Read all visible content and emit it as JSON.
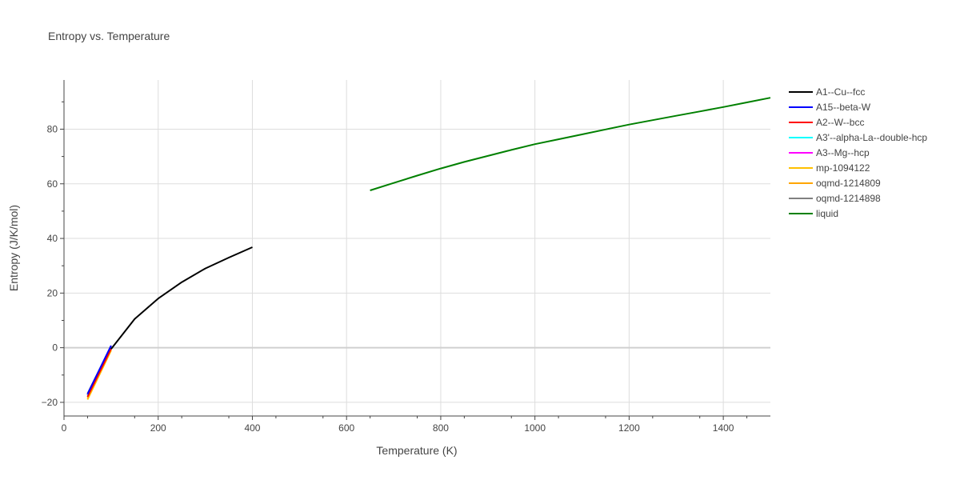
{
  "chart_data": {
    "type": "line",
    "title": "Entropy vs. Temperature",
    "xlabel": "Temperature (K)",
    "ylabel": "Entropy (J/K/mol)",
    "xlim": [
      0,
      1500
    ],
    "ylim": [
      -25,
      98
    ],
    "x_ticks": [
      0,
      200,
      400,
      600,
      800,
      1000,
      1200,
      1400
    ],
    "y_ticks": [
      -20,
      0,
      20,
      40,
      60,
      80
    ],
    "grid": true,
    "legend_position": "right",
    "series": [
      {
        "name": "A1--Cu--fcc",
        "color": "#000000",
        "x": [
          100,
          150,
          200,
          250,
          300,
          350,
          400
        ],
        "y": [
          -0.5,
          10.5,
          18,
          24,
          29,
          33,
          36.8
        ]
      },
      {
        "name": "A15--beta-W",
        "color": "#0000ff",
        "x": [
          50,
          100
        ],
        "y": [
          -17,
          0.8
        ]
      },
      {
        "name": "A2--W--bcc",
        "color": "#ff0000",
        "x": [
          50,
          100
        ],
        "y": [
          -18,
          -0.3
        ]
      },
      {
        "name": "A3'--alpha-La--double-hcp",
        "color": "#00ffff",
        "x": [
          50,
          100
        ],
        "y": [
          -17.5,
          0.3
        ]
      },
      {
        "name": "A3--Mg--hcp",
        "color": "#ff00ff",
        "x": [
          50,
          100
        ],
        "y": [
          -17.3,
          0.5
        ]
      },
      {
        "name": "mp-1094122",
        "color": "#ffc000",
        "x": [
          50,
          100
        ],
        "y": [
          -19,
          -1
        ]
      },
      {
        "name": "oqmd-1214809",
        "color": "#ffa500",
        "x": [
          50,
          100
        ],
        "y": [
          -18.5,
          -0.8
        ]
      },
      {
        "name": "oqmd-1214898",
        "color": "#808080",
        "x": [
          50,
          100
        ],
        "y": [
          -16.8,
          0.6
        ]
      },
      {
        "name": "liquid",
        "color": "#008000",
        "x": [
          650,
          700,
          750,
          800,
          850,
          900,
          950,
          1000,
          1050,
          1100,
          1150,
          1200,
          1250,
          1300,
          1350,
          1400,
          1450,
          1500
        ],
        "y": [
          57.6,
          60.3,
          63,
          65.6,
          68,
          70.2,
          72.4,
          74.5,
          76.3,
          78.1,
          79.9,
          81.7,
          83.3,
          84.9,
          86.5,
          88.1,
          89.8,
          91.5
        ]
      }
    ]
  }
}
